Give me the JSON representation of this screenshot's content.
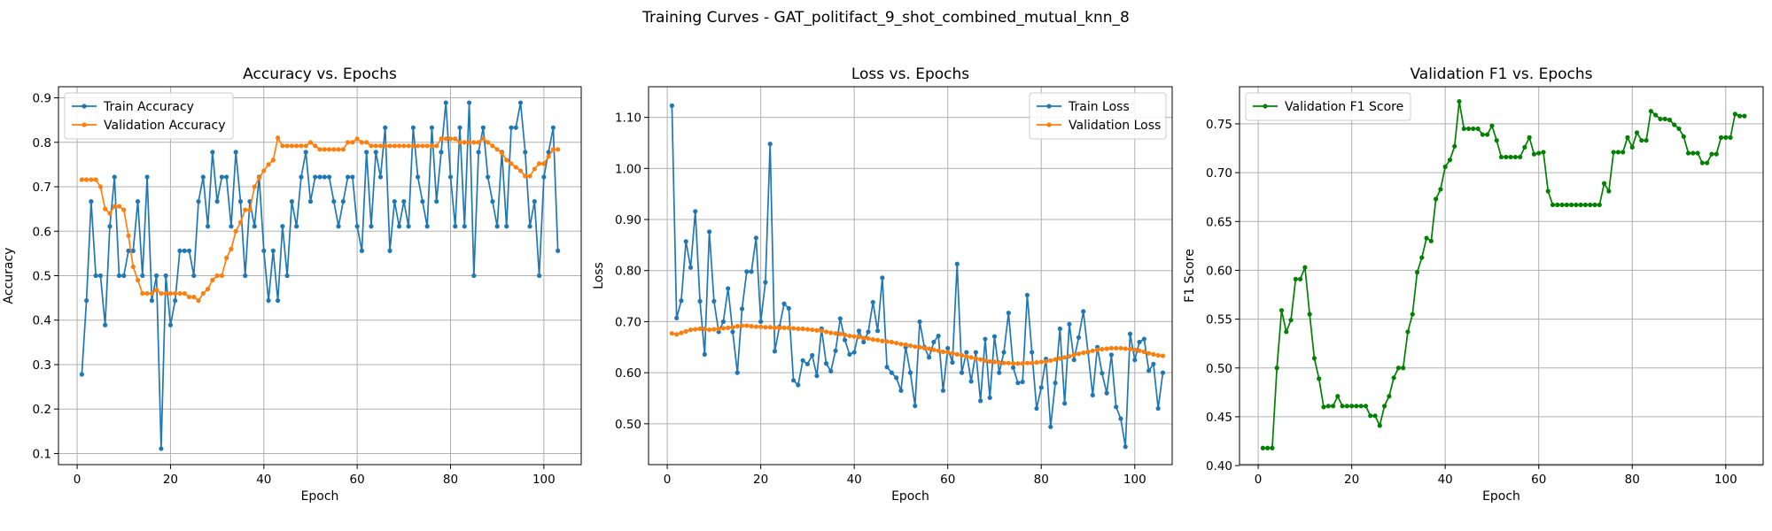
{
  "figure": {
    "suptitle": "Training Curves - GAT_politifact_9_shot_combined_mutual_knn_8"
  },
  "colors": {
    "train": "#1f77b4",
    "validation": "#ff7f0e",
    "f1": "#008000",
    "grid": "#b0b0b0"
  },
  "chart_data": [
    {
      "type": "line",
      "title": "Accuracy vs. Epochs",
      "xlabel": "Epoch",
      "ylabel": "Accuracy",
      "xlim": [
        -4,
        108
      ],
      "ylim": [
        0.075,
        0.925
      ],
      "xticks": [
        0,
        20,
        40,
        60,
        80,
        100
      ],
      "yticks": [
        0.1,
        0.2,
        0.3,
        0.4,
        0.5,
        0.6,
        0.7,
        0.8,
        0.9
      ],
      "grid": true,
      "legend_position": "top-left",
      "series": [
        {
          "name": "Train Accuracy",
          "color": "#1f77b4",
          "x_start": 1,
          "values": [
            0.278,
            0.444,
            0.667,
            0.5,
            0.5,
            0.389,
            0.611,
            0.722,
            0.5,
            0.5,
            0.556,
            0.556,
            0.667,
            0.5,
            0.722,
            0.444,
            0.5,
            0.111,
            0.5,
            0.389,
            0.444,
            0.556,
            0.556,
            0.556,
            0.5,
            0.667,
            0.722,
            0.611,
            0.778,
            0.667,
            0.722,
            0.722,
            0.611,
            0.778,
            0.667,
            0.5,
            0.667,
            0.611,
            0.722,
            0.556,
            0.444,
            0.556,
            0.444,
            0.611,
            0.5,
            0.667,
            0.611,
            0.722,
            0.778,
            0.667,
            0.722,
            0.722,
            0.722,
            0.722,
            0.667,
            0.611,
            0.667,
            0.722,
            0.722,
            0.611,
            0.556,
            0.778,
            0.611,
            0.778,
            0.722,
            0.833,
            0.556,
            0.667,
            0.611,
            0.667,
            0.611,
            0.833,
            0.722,
            0.667,
            0.611,
            0.833,
            0.667,
            0.778,
            0.889,
            0.722,
            0.611,
            0.833,
            0.611,
            0.889,
            0.5,
            0.778,
            0.833,
            0.722,
            0.667,
            0.611,
            0.778,
            0.611,
            0.833,
            0.833,
            0.889,
            0.778,
            0.611,
            0.667,
            0.5,
            0.722,
            0.778,
            0.833,
            0.556
          ]
        },
        {
          "name": "Validation Accuracy",
          "color": "#ff7f0e",
          "x_start": 1,
          "values": [
            0.716,
            0.716,
            0.716,
            0.716,
            0.7,
            0.65,
            0.64,
            0.656,
            0.656,
            0.648,
            0.59,
            0.52,
            0.49,
            0.46,
            0.46,
            0.46,
            0.468,
            0.46,
            0.46,
            0.46,
            0.46,
            0.46,
            0.46,
            0.452,
            0.452,
            0.444,
            0.46,
            0.47,
            0.49,
            0.5,
            0.5,
            0.54,
            0.56,
            0.6,
            0.62,
            0.648,
            0.648,
            0.7,
            0.72,
            0.736,
            0.75,
            0.76,
            0.81,
            0.792,
            0.792,
            0.792,
            0.792,
            0.792,
            0.792,
            0.8,
            0.792,
            0.784,
            0.784,
            0.784,
            0.784,
            0.784,
            0.784,
            0.8,
            0.8,
            0.808,
            0.8,
            0.8,
            0.792,
            0.792,
            0.792,
            0.792,
            0.792,
            0.792,
            0.792,
            0.792,
            0.792,
            0.792,
            0.792,
            0.792,
            0.792,
            0.792,
            0.792,
            0.808,
            0.808,
            0.808,
            0.808,
            0.8,
            0.8,
            0.8,
            0.8,
            0.8,
            0.808,
            0.8,
            0.792,
            0.784,
            0.776,
            0.76,
            0.752,
            0.744,
            0.736,
            0.724,
            0.724,
            0.74,
            0.752,
            0.752,
            0.768,
            0.784,
            0.784
          ]
        }
      ]
    },
    {
      "type": "line",
      "title": "Loss vs. Epochs",
      "xlabel": "Epoch",
      "ylabel": "Loss",
      "xlim": [
        -4,
        108
      ],
      "ylim": [
        0.42,
        1.16
      ],
      "xticks": [
        0,
        20,
        40,
        60,
        80,
        100
      ],
      "yticks": [
        0.5,
        0.6,
        0.7,
        0.8,
        0.9,
        1.0,
        1.1
      ],
      "grid": true,
      "legend_position": "top-right",
      "series": [
        {
          "name": "Train Loss",
          "color": "#1f77b4",
          "x_start": 1,
          "values": [
            1.123,
            0.707,
            0.741,
            0.857,
            0.806,
            0.916,
            0.74,
            0.636,
            0.876,
            0.74,
            0.68,
            0.7,
            0.765,
            0.68,
            0.6,
            0.725,
            0.798,
            0.798,
            0.864,
            0.7,
            0.777,
            1.048,
            0.642,
            0.69,
            0.735,
            0.726,
            0.585,
            0.576,
            0.624,
            0.617,
            0.634,
            0.594,
            0.686,
            0.618,
            0.603,
            0.643,
            0.706,
            0.664,
            0.636,
            0.64,
            0.682,
            0.66,
            0.68,
            0.738,
            0.682,
            0.786,
            0.611,
            0.6,
            0.59,
            0.565,
            0.65,
            0.6,
            0.535,
            0.7,
            0.65,
            0.63,
            0.66,
            0.672,
            0.565,
            0.648,
            0.62,
            0.813,
            0.6,
            0.64,
            0.583,
            0.64,
            0.545,
            0.666,
            0.551,
            0.671,
            0.6,
            0.64,
            0.717,
            0.61,
            0.58,
            0.582,
            0.752,
            0.64,
            0.53,
            0.571,
            0.627,
            0.494,
            0.58,
            0.686,
            0.54,
            0.695,
            0.625,
            0.669,
            0.72,
            0.64,
            0.556,
            0.65,
            0.599,
            0.56,
            0.635,
            0.533,
            0.51,
            0.455,
            0.676,
            0.625,
            0.66,
            0.666,
            0.604,
            0.617,
            0.53,
            0.6
          ]
        },
        {
          "name": "Validation Loss",
          "color": "#ff7f0e",
          "x_start": 1,
          "values": [
            0.677,
            0.675,
            0.678,
            0.681,
            0.684,
            0.685,
            0.686,
            0.686,
            0.684,
            0.685,
            0.686,
            0.687,
            0.688,
            0.689,
            0.691,
            0.692,
            0.692,
            0.691,
            0.69,
            0.69,
            0.689,
            0.689,
            0.688,
            0.688,
            0.688,
            0.688,
            0.687,
            0.686,
            0.686,
            0.685,
            0.684,
            0.683,
            0.682,
            0.68,
            0.678,
            0.677,
            0.676,
            0.674,
            0.672,
            0.671,
            0.67,
            0.668,
            0.667,
            0.665,
            0.664,
            0.662,
            0.661,
            0.66,
            0.658,
            0.656,
            0.655,
            0.653,
            0.651,
            0.65,
            0.648,
            0.647,
            0.645,
            0.643,
            0.641,
            0.64,
            0.638,
            0.636,
            0.634,
            0.632,
            0.63,
            0.628,
            0.626,
            0.624,
            0.622,
            0.621,
            0.62,
            0.619,
            0.619,
            0.618,
            0.618,
            0.618,
            0.619,
            0.619,
            0.62,
            0.621,
            0.622,
            0.624,
            0.626,
            0.628,
            0.63,
            0.632,
            0.635,
            0.637,
            0.639,
            0.641,
            0.643,
            0.645,
            0.646,
            0.647,
            0.648,
            0.648,
            0.648,
            0.647,
            0.646,
            0.645,
            0.643,
            0.641,
            0.638,
            0.636,
            0.634,
            0.633
          ]
        }
      ]
    },
    {
      "type": "line",
      "title": "Validation F1 vs. Epochs",
      "xlabel": "Epoch",
      "ylabel": "F1 Score",
      "xlim": [
        -4,
        108
      ],
      "ylim": [
        0.401,
        0.788
      ],
      "xticks": [
        0,
        20,
        40,
        60,
        80,
        100
      ],
      "yticks": [
        0.4,
        0.45,
        0.5,
        0.55,
        0.6,
        0.65,
        0.7,
        0.75
      ],
      "grid": true,
      "legend_position": "top-left",
      "series": [
        {
          "name": "Validation F1 Score",
          "color": "#008000",
          "x_start": 1,
          "values": [
            0.418,
            0.418,
            0.418,
            0.5,
            0.559,
            0.537,
            0.549,
            0.591,
            0.591,
            0.603,
            0.555,
            0.51,
            0.489,
            0.46,
            0.461,
            0.461,
            0.471,
            0.461,
            0.461,
            0.461,
            0.461,
            0.461,
            0.461,
            0.451,
            0.451,
            0.441,
            0.461,
            0.471,
            0.49,
            0.5,
            0.5,
            0.537,
            0.555,
            0.598,
            0.613,
            0.633,
            0.63,
            0.673,
            0.683,
            0.706,
            0.713,
            0.727,
            0.773,
            0.745,
            0.745,
            0.745,
            0.745,
            0.739,
            0.739,
            0.748,
            0.733,
            0.716,
            0.716,
            0.716,
            0.716,
            0.716,
            0.726,
            0.736,
            0.719,
            0.72,
            0.721,
            0.681,
            0.667,
            0.667,
            0.667,
            0.667,
            0.667,
            0.667,
            0.667,
            0.667,
            0.667,
            0.667,
            0.667,
            0.689,
            0.681,
            0.721,
            0.721,
            0.721,
            0.736,
            0.726,
            0.741,
            0.733,
            0.733,
            0.763,
            0.759,
            0.755,
            0.755,
            0.754,
            0.749,
            0.745,
            0.737,
            0.72,
            0.72,
            0.72,
            0.71,
            0.71,
            0.719,
            0.719,
            0.736,
            0.736,
            0.736,
            0.76,
            0.758,
            0.758
          ]
        }
      ]
    }
  ]
}
